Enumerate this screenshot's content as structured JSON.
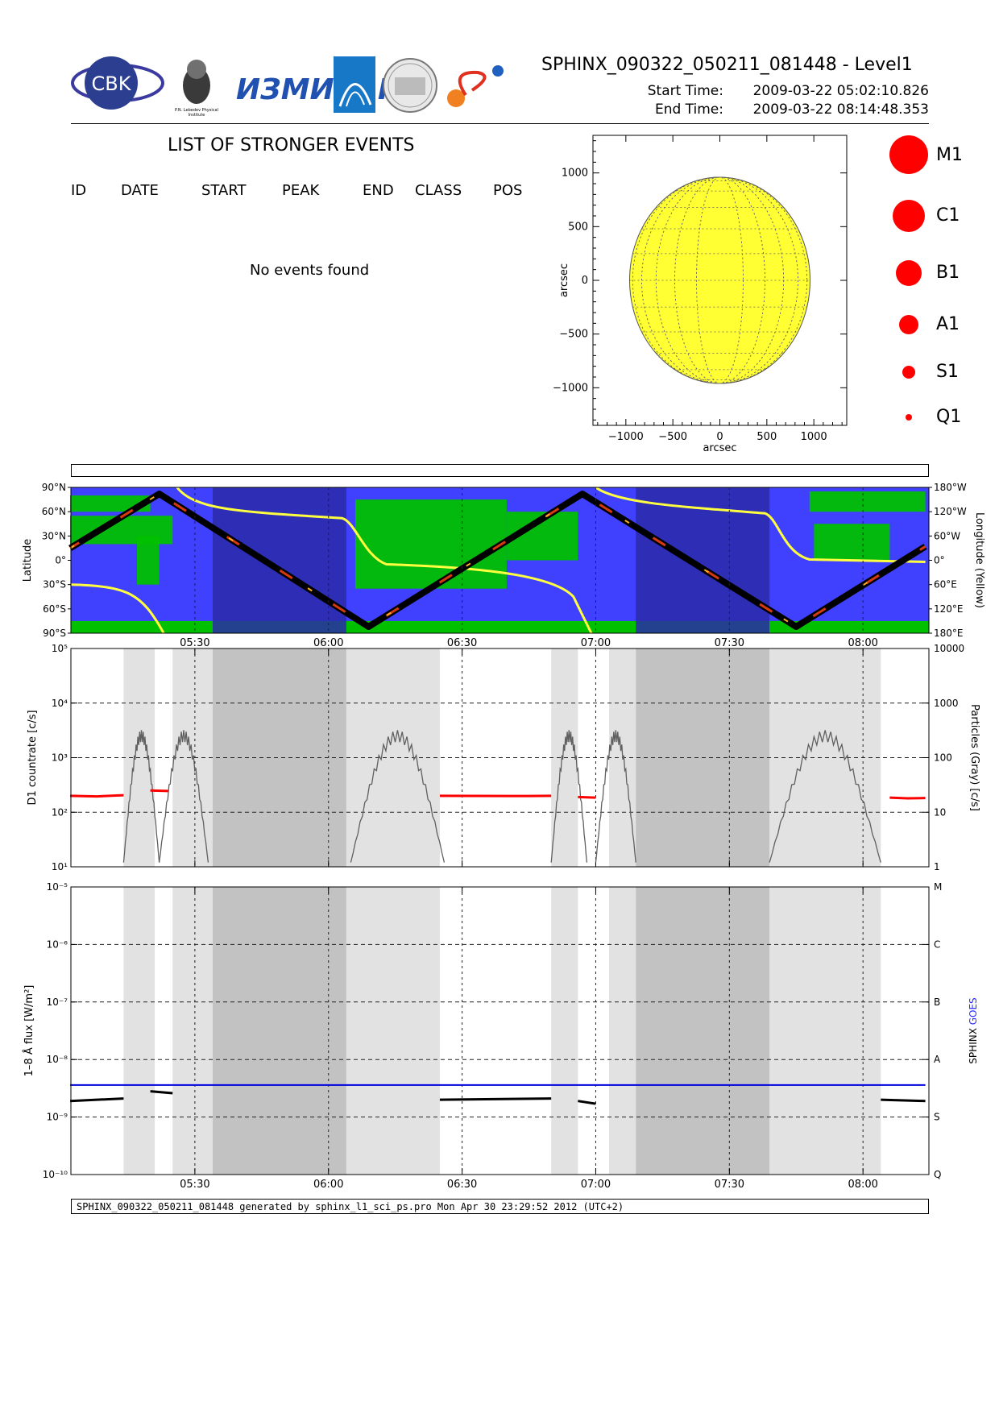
{
  "header": {
    "title": "SPHINX_090322_050211_081448 - Level1",
    "start_label": "Start Time:",
    "start_value": "2009-03-22   05:02:10.826",
    "end_label": "End Time:",
    "end_value": "2009-03-22   08:14:48.353",
    "logos": [
      "CBK",
      "P.N. Lebedev Physical Institute of the Russian Academy of Science"
    ]
  },
  "events": {
    "title": "LIST OF STRONGER EVENTS",
    "columns": [
      "ID",
      "DATE",
      "START",
      "PEAK",
      "END",
      "CLASS",
      "POS"
    ],
    "message": "No events found"
  },
  "disk_legend": [
    "M1",
    "C1",
    "B1",
    "A1",
    "S1",
    "Q1"
  ],
  "footer": "SPHINX_090322_050211_081448 generated by sphinx_l1_sci_ps.pro Mon Apr 30 23:29:52 2012 (UTC+2)",
  "colors": {
    "sun": "#ffff33",
    "flare": "#ff0000",
    "ocean": "#4040ff",
    "land": "#00c000",
    "night": "#2a2aa8",
    "goes": "#0000dd",
    "sphinx": "#000000",
    "trace": "#606060"
  },
  "chart_data": [
    {
      "type": "scatter",
      "name": "solar-disk",
      "xlabel": "arcsec",
      "ylabel": "arcsec",
      "xlim": [
        -1350,
        1350
      ],
      "ylim": [
        -1350,
        1350
      ],
      "xticks": [
        "−1000",
        "−500",
        "0",
        "500",
        "1000"
      ],
      "yticks": [
        "1000",
        "500",
        "0",
        "−500",
        "−1000"
      ],
      "disk_radius": 960,
      "grid": true
    },
    {
      "type": "line",
      "name": "orbit-map",
      "xlim": [
        "05:02:10",
        "08:14:48"
      ],
      "xticks": [
        "05:30",
        "06:00",
        "06:30",
        "07:00",
        "07:30",
        "08:00"
      ],
      "ylabel": "Latitude",
      "y2label": "Longitude (Yellow)",
      "yticks": [
        "90°N",
        "60°N",
        "30°N",
        "0°",
        "30°S",
        "60°S",
        "90°S"
      ],
      "y2ticks": [
        "180°W",
        "120°W",
        "60°W",
        "0°",
        "60°E",
        "120°E",
        "180°E"
      ],
      "latitude_track": {
        "x": [
          "05:02",
          "05:22",
          "06:09",
          "06:57",
          "07:45",
          "08:14"
        ],
        "y": [
          15,
          82,
          -82,
          82,
          -82,
          17
        ]
      },
      "night_intervals": [
        [
          "05:34",
          "06:04"
        ],
        [
          "07:09",
          "07:39"
        ]
      ]
    },
    {
      "type": "line",
      "name": "count-rate",
      "xlim": [
        "05:02:10",
        "08:14:48"
      ],
      "xticks": [
        "05:30",
        "06:00",
        "06:30",
        "07:00",
        "07:30",
        "08:00"
      ],
      "ylabel": "D1 countrate [c/s]",
      "y2label": "Particles (Gray) [c/s]",
      "yscale": "log",
      "ylim": [
        10,
        100000
      ],
      "yticks": [
        "10¹",
        "10²",
        "10³",
        "10⁴",
        "10⁵"
      ],
      "y2ticks": [
        "1",
        "10",
        "100",
        "1000",
        "10000"
      ],
      "series": [
        {
          "name": "D1",
          "segments": [
            {
              "x": [
                "05:02",
                "05:08",
                "05:14"
              ],
              "y": [
                200,
                195,
                205
              ]
            },
            {
              "x": [
                "05:20",
                "05:24"
              ],
              "y": [
                250,
                245
              ]
            },
            {
              "x": [
                "06:25",
                "06:45",
                "06:50"
              ],
              "y": [
                200,
                198,
                200
              ]
            },
            {
              "x": [
                "06:56",
                "07:00"
              ],
              "y": [
                190,
                185
              ]
            },
            {
              "x": [
                "08:06",
                "08:10",
                "08:14"
              ],
              "y": [
                185,
                180,
                182
              ]
            }
          ]
        }
      ],
      "shaded_light": [
        [
          "05:14",
          "05:21"
        ],
        [
          "05:25",
          "05:34"
        ],
        [
          "06:04",
          "06:25"
        ],
        [
          "06:50",
          "06:56"
        ],
        [
          "07:03",
          "07:09"
        ],
        [
          "07:39",
          "08:04"
        ]
      ],
      "shaded_dark": [
        [
          "05:34",
          "06:04"
        ],
        [
          "07:09",
          "07:39"
        ]
      ]
    },
    {
      "type": "line",
      "name": "goes-flux",
      "xlim": [
        "05:02:10",
        "08:14:48"
      ],
      "xticks": [
        "05:30",
        "06:00",
        "06:30",
        "07:00",
        "07:30",
        "08:00"
      ],
      "ylabel": "1–8 Å flux [W/m²]",
      "yscale": "log",
      "ylim": [
        1e-10,
        1e-05
      ],
      "yticks": [
        "10⁻¹⁰",
        "10⁻⁹",
        "10⁻⁸",
        "10⁻⁷",
        "10⁻⁶",
        "10⁻⁵"
      ],
      "y2ticks": [
        "Q",
        "S",
        "A",
        "B",
        "C",
        "M"
      ],
      "legend": [
        "SPHINX",
        "GOES"
      ],
      "series": [
        {
          "name": "GOES",
          "x": [
            "05:02",
            "08:14"
          ],
          "y": [
            3.6e-09,
            3.6e-09
          ]
        },
        {
          "name": "SPHINX",
          "segments": [
            {
              "x": [
                "05:02",
                "05:14"
              ],
              "y": [
                1.9e-09,
                2.1e-09
              ]
            },
            {
              "x": [
                "05:20",
                "05:25"
              ],
              "y": [
                2.8e-09,
                2.6e-09
              ]
            },
            {
              "x": [
                "06:25",
                "06:50"
              ],
              "y": [
                2e-09,
                2.1e-09
              ]
            },
            {
              "x": [
                "06:56",
                "07:00"
              ],
              "y": [
                1.9e-09,
                1.7e-09
              ]
            },
            {
              "x": [
                "08:04",
                "08:14"
              ],
              "y": [
                2e-09,
                1.9e-09
              ]
            }
          ]
        }
      ]
    }
  ]
}
